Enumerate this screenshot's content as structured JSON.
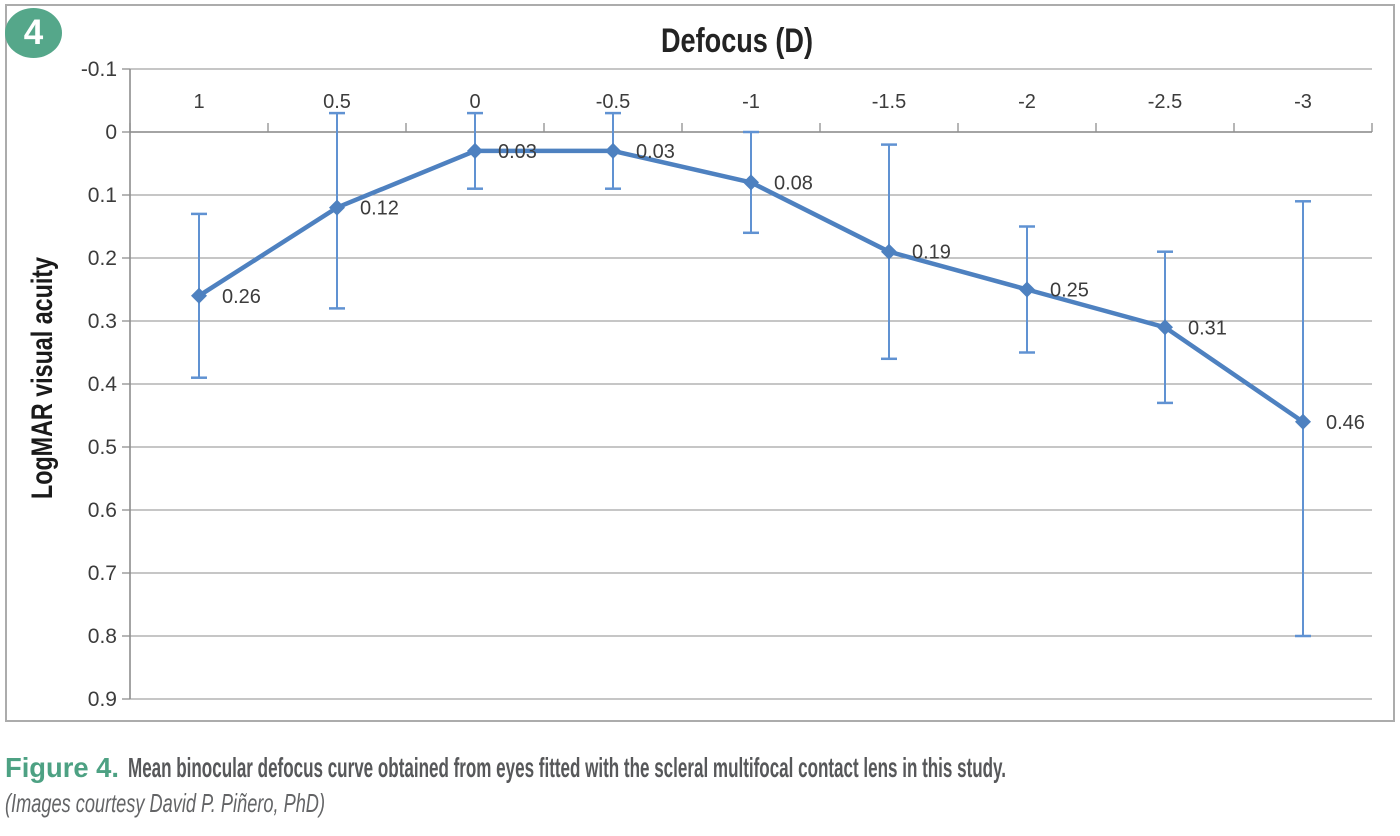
{
  "figure": {
    "badge": "4",
    "caption": {
      "label": "Figure 4.",
      "text": "Mean binocular defocus curve obtained from eyes fitted with the scleral multifocal contact lens in this study.",
      "credit": "(Images courtesy David P. Piñero, PhD)"
    }
  },
  "chart_data": {
    "type": "line",
    "xlabel": "Defocus (D)",
    "ylabel": "LogMAR visual acuity",
    "x_axis_position": "top",
    "y_axis_inverted": true,
    "categories": [
      "1",
      "0.5",
      "0",
      "-0.5",
      "-1",
      "-1.5",
      "-2",
      "-2.5",
      "-3"
    ],
    "values": [
      0.26,
      0.12,
      0.03,
      0.03,
      0.08,
      0.19,
      0.25,
      0.31,
      0.46
    ],
    "point_labels": [
      "0.26",
      "0.12",
      "0.03",
      "0.03",
      "0.08",
      "0.19",
      "0.25",
      "0.31",
      "0.46"
    ],
    "error_bar_min": [
      0.13,
      -0.03,
      -0.03,
      -0.03,
      0.0,
      0.02,
      0.15,
      0.19,
      0.11
    ],
    "error_bar_max": [
      0.39,
      0.28,
      0.09,
      0.09,
      0.16,
      0.36,
      0.35,
      0.43,
      0.8
    ],
    "y_ticks": [
      "-0.1",
      "0",
      "0.1",
      "0.2",
      "0.3",
      "0.4",
      "0.5",
      "0.6",
      "0.7",
      "0.8",
      "0.9"
    ],
    "ylim": [
      -0.1,
      0.9
    ],
    "grid": "horizontal",
    "legend": "none",
    "marker": "diamond",
    "colors": {
      "series": "#4e81c0",
      "error_bars": "#6092d2",
      "gridlines": "#a4a4a4",
      "axis": "#8e8e8e",
      "chart_border": "#acacac",
      "tick_text": "#3c3c3c",
      "title_text": "#232323",
      "badge_green": "#55a78a",
      "caption_green": "#4da183",
      "caption_gray": "#57585a",
      "credit_gray": "#636466"
    }
  }
}
